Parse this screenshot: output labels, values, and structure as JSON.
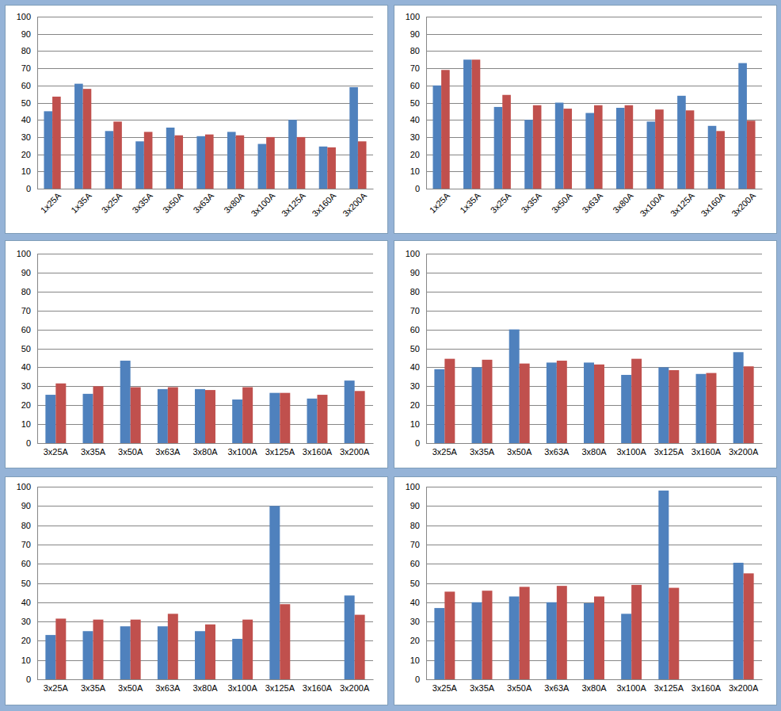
{
  "chart_data": [
    {
      "type": "bar",
      "categories": [
        "1x25A",
        "1x35A",
        "3x25A",
        "3x35A",
        "3x50A",
        "3x63A",
        "3x80A",
        "3x100A",
        "3x125A",
        "3x160A",
        "3x200A"
      ],
      "series": [
        {
          "color": "#4f81bd",
          "values": [
            45,
            61,
            33.5,
            27.5,
            35.5,
            30.5,
            33,
            26,
            40,
            24.5,
            59
          ]
        },
        {
          "color": "#c0504d",
          "values": [
            53.5,
            58,
            39,
            33,
            31,
            31.5,
            31,
            30,
            30,
            24,
            27.5
          ]
        }
      ],
      "ylim": [
        0,
        100
      ],
      "yticks": [
        0,
        10,
        20,
        30,
        40,
        50,
        60,
        70,
        80,
        90,
        100
      ],
      "grid": true
    },
    {
      "type": "bar",
      "categories": [
        "1x25A",
        "1x35A",
        "3x25A",
        "3x35A",
        "3x50A",
        "3x63A",
        "3x80A",
        "3x100A",
        "3x125A",
        "3x160A",
        "3x200A"
      ],
      "series": [
        {
          "color": "#4f81bd",
          "values": [
            60,
            75,
            47.5,
            40,
            50,
            44,
            47,
            39,
            54,
            36.5,
            73
          ]
        },
        {
          "color": "#c0504d",
          "values": [
            69,
            75,
            54.5,
            48.5,
            46.5,
            48.5,
            48.5,
            46,
            45.5,
            33.5,
            39.5
          ]
        }
      ],
      "ylim": [
        0,
        100
      ],
      "yticks": [
        0,
        10,
        20,
        30,
        40,
        50,
        60,
        70,
        80,
        90,
        100
      ],
      "grid": true
    },
    {
      "type": "bar",
      "categories": [
        "3x25A",
        "3x35A",
        "3x50A",
        "3x63A",
        "3x80A",
        "3x100A",
        "3x125A",
        "3x160A",
        "3x200A"
      ],
      "series": [
        {
          "color": "#4f81bd",
          "values": [
            25.5,
            26,
            43.5,
            28.5,
            28.5,
            23,
            26.5,
            23.5,
            33
          ]
        },
        {
          "color": "#c0504d",
          "values": [
            31.5,
            30,
            29.5,
            29.5,
            28,
            29.5,
            26.5,
            25.5,
            27.5
          ]
        }
      ],
      "ylim": [
        0,
        100
      ],
      "yticks": [
        0,
        10,
        20,
        30,
        40,
        50,
        60,
        70,
        80,
        90,
        100
      ],
      "grid": true
    },
    {
      "type": "bar",
      "categories": [
        "3x25A",
        "3x35A",
        "3x50A",
        "3x63A",
        "3x80A",
        "3x100A",
        "3x125A",
        "3x160A",
        "3x200A"
      ],
      "series": [
        {
          "color": "#4f81bd",
          "values": [
            39,
            40,
            60,
            42.5,
            42.5,
            36,
            40,
            36.5,
            48
          ]
        },
        {
          "color": "#c0504d",
          "values": [
            44.5,
            44,
            42,
            43.5,
            41.5,
            44.5,
            38.5,
            37,
            40.5
          ]
        }
      ],
      "ylim": [
        0,
        100
      ],
      "yticks": [
        0,
        10,
        20,
        30,
        40,
        50,
        60,
        70,
        80,
        90,
        100
      ],
      "grid": true
    },
    {
      "type": "bar",
      "categories": [
        "3x25A",
        "3x35A",
        "3x50A",
        "3x63A",
        "3x80A",
        "3x100A",
        "3x125A",
        "3x160A",
        "3x200A"
      ],
      "series": [
        {
          "color": "#4f81bd",
          "values": [
            23,
            25,
            27.5,
            27.5,
            25,
            21,
            90,
            null,
            43.5
          ]
        },
        {
          "color": "#c0504d",
          "values": [
            31.5,
            31,
            31,
            34,
            28.5,
            31,
            39,
            null,
            33.5
          ]
        }
      ],
      "ylim": [
        0,
        100
      ],
      "yticks": [
        0,
        10,
        20,
        30,
        40,
        50,
        60,
        70,
        80,
        90,
        100
      ],
      "grid": true
    },
    {
      "type": "bar",
      "categories": [
        "3x25A",
        "3x35A",
        "3x50A",
        "3x63A",
        "3x80A",
        "3x100A",
        "3x125A",
        "3x160A",
        "3x200A"
      ],
      "series": [
        {
          "color": "#4f81bd",
          "values": [
            37,
            40,
            43,
            40,
            39.5,
            34,
            98,
            null,
            60.5
          ]
        },
        {
          "color": "#c0504d",
          "values": [
            45.5,
            46,
            48,
            48.5,
            43,
            49,
            47.5,
            null,
            55
          ]
        }
      ],
      "ylim": [
        0,
        100
      ],
      "yticks": [
        0,
        10,
        20,
        30,
        40,
        50,
        60,
        70,
        80,
        90,
        100
      ],
      "grid": true
    }
  ]
}
